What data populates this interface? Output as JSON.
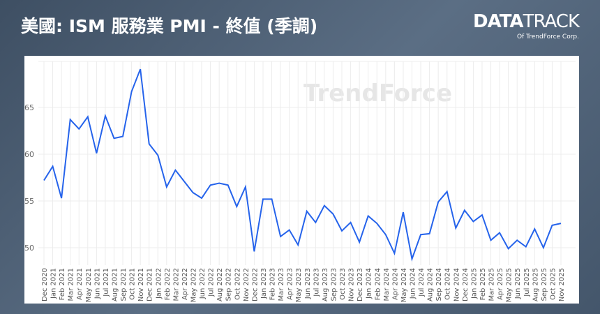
{
  "title": "美國: ISM 服務業 PMI - 終值 (季調)",
  "logo": {
    "main": "DATA",
    "sub": "TRACK",
    "byline": "Of TrendForce Corp."
  },
  "watermark": "TrendForce",
  "colors": {
    "line": "#2563eb"
  },
  "chart_data": {
    "type": "line",
    "title": "美國: ISM 服務業 PMI - 終值 (季調)",
    "xlabel": "",
    "ylabel": "",
    "ylim": [
      48.5,
      70
    ],
    "yticks": [
      50,
      55,
      60,
      65
    ],
    "grid": true,
    "categories": [
      "Dec 2020",
      "Jan 2021",
      "Feb 2021",
      "Mar 2021",
      "Apr 2021",
      "May 2021",
      "Jun 2021",
      "Jul 2021",
      "Aug 2021",
      "Sep 2021",
      "Oct 2021",
      "Nov 2021",
      "Dec 2021",
      "Jan 2022",
      "Feb 2022",
      "Mar 2022",
      "Apr 2022",
      "May 2022",
      "Jun 2022",
      "Jul 2022",
      "Aug 2022",
      "Sep 2022",
      "Oct 2022",
      "Nov 2022",
      "Dec 2022",
      "Jan 2023",
      "Feb 2023",
      "Mar 2023",
      "Apr 2023",
      "May 2023",
      "Jun 2023",
      "Jul 2023",
      "Aug 2023",
      "Sep 2023",
      "Oct 2023",
      "Nov 2023",
      "Dec 2023",
      "Jan 2024",
      "Feb 2024",
      "Mar 2024",
      "Apr 2024",
      "May 2024",
      "Jun 2024",
      "Jul 2024",
      "Aug 2024",
      "Sep 2024",
      "Oct 2024",
      "Nov 2024",
      "Dec 2024",
      "Jan 2025",
      "Feb 2025",
      "Mar 2025",
      "Apr 2025",
      "May 2025",
      "Jun 2025",
      "Jul 2025",
      "Aug 2025",
      "Sep 2025",
      "Oct 2025",
      "Nov 2025"
    ],
    "series": [
      {
        "name": "ISM 服務業 PMI",
        "values": [
          57.2,
          58.7,
          55.3,
          63.7,
          62.7,
          64.0,
          60.1,
          64.1,
          61.7,
          61.9,
          66.7,
          69.1,
          61.1,
          59.9,
          56.5,
          58.3,
          57.1,
          55.9,
          55.3,
          56.7,
          56.9,
          56.7,
          54.4,
          56.5,
          49.6,
          55.2,
          55.2,
          51.2,
          51.9,
          50.3,
          53.9,
          52.7,
          54.5,
          53.6,
          51.8,
          52.7,
          50.6,
          53.4,
          52.6,
          51.4,
          49.4,
          53.8,
          48.8,
          51.4,
          51.5,
          54.9,
          56.0,
          52.1,
          54.0,
          52.8,
          53.5,
          50.8,
          51.6,
          49.9,
          50.8,
          50.1,
          52.0,
          50.0,
          52.4,
          52.6
        ]
      }
    ]
  }
}
